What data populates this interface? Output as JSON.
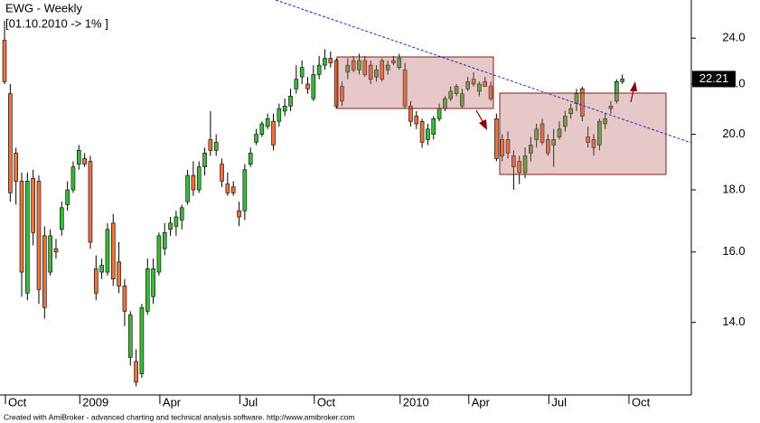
{
  "chart_data": {
    "type": "candlestick",
    "title": "EWG - Weekly",
    "subtitle": "[01.10.2010 -> 1% ]",
    "footer": "Created with AmiBroker - advanced charting and technical analysis software. http://www.amibroker.com",
    "log_scale": true,
    "up_color": "#3cb83c",
    "down_color": "#e8743b",
    "ylim": [
      12.2,
      25.8
    ],
    "yticks": [
      {
        "value": 14,
        "label": "14.0"
      },
      {
        "value": 16,
        "label": "16.0"
      },
      {
        "value": 18,
        "label": "18.0"
      },
      {
        "value": 20,
        "label": "20.0"
      },
      {
        "value": 22,
        "label": "22.0"
      },
      {
        "value": 24,
        "label": "24.0"
      }
    ],
    "categories": [
      "Oct",
      null,
      null,
      null,
      null,
      null,
      null,
      null,
      null,
      null,
      null,
      null,
      null,
      "2009",
      null,
      null,
      null,
      null,
      null,
      null,
      null,
      null,
      null,
      null,
      null,
      null,
      null,
      "Apr",
      null,
      null,
      null,
      null,
      null,
      null,
      null,
      null,
      null,
      null,
      null,
      null,
      null,
      "Jul",
      null,
      null,
      null,
      null,
      null,
      null,
      null,
      null,
      null,
      null,
      null,
      null,
      "Oct",
      null,
      null,
      null,
      null,
      null,
      null,
      null,
      null,
      null,
      null,
      null,
      null,
      null,
      null,
      "2010",
      null,
      null,
      null,
      null,
      null,
      null,
      null,
      null,
      null,
      null,
      null,
      "Apr",
      null,
      null,
      null,
      null,
      null,
      null,
      null,
      null,
      null,
      null,
      null,
      null,
      null,
      "Jul",
      null,
      null,
      null,
      null,
      null,
      null,
      null,
      null,
      null,
      null,
      null,
      null,
      null,
      "Oct"
    ],
    "ohlc": {
      "open": [
        23.9,
        21.6,
        19.3,
        18.3,
        14.8,
        18.4,
        18.3,
        16.5,
        15.4,
        16.1,
        16.7,
        17.5,
        18.0,
        18.9,
        19.1,
        19.0,
        15.5,
        15.4,
        15.4,
        16.9,
        15.7,
        15.0,
        13.1,
        13.0,
        12.7,
        14.3,
        14.7,
        15.4,
        16.1,
        16.7,
        16.8,
        17.0,
        17.6,
        18.5,
        18.0,
        18.8,
        19.8,
        19.4,
        18.9,
        18.2,
        18.1,
        17.3,
        17.3,
        18.9,
        19.7,
        20.0,
        20.3,
        20.5,
        20.5,
        20.9,
        21.1,
        21.8,
        22.3,
        22.0,
        21.4,
        22.4,
        22.8,
        23.1,
        23.0,
        21.9,
        22.5,
        23.0,
        22.6,
        23.0,
        22.8,
        22.3,
        23.0,
        22.6,
        23.0,
        22.7,
        22.6,
        21.1,
        20.7,
        20.5,
        19.8,
        20.0,
        20.6,
        21.0,
        21.4,
        21.6,
        21.1,
        21.8,
        22.2,
        21.7,
        22.1,
        21.9,
        20.6,
        19.8,
        19.8,
        19.2,
        19.0,
        18.6,
        19.3,
        19.8,
        20.4,
        19.8,
        19.6,
        19.9,
        20.3,
        20.8,
        21.2,
        21.8,
        19.9,
        19.8,
        19.6,
        20.4,
        21.0,
        21.3,
        22.1,
        null
      ],
      "high": [
        24.8,
        22.0,
        19.5,
        18.6,
        18.6,
        18.7,
        18.5,
        16.8,
        16.7,
        16.4,
        17.6,
        18.3,
        19.0,
        19.6,
        19.3,
        19.2,
        15.9,
        15.8,
        16.9,
        17.2,
        16.3,
        15.2,
        14.3,
        13.3,
        14.5,
        15.8,
        15.8,
        16.6,
        16.9,
        17.1,
        17.3,
        17.5,
        18.7,
        19.0,
        19.0,
        19.5,
        20.9,
        20.0,
        19.1,
        18.6,
        18.3,
        17.6,
        18.9,
        19.5,
        20.2,
        20.5,
        20.8,
        20.8,
        21.2,
        21.4,
        21.8,
        22.8,
        23.0,
        22.3,
        22.8,
        23.2,
        23.5,
        23.4,
        23.1,
        22.1,
        23.1,
        23.2,
        23.3,
        23.2,
        23.0,
        22.8,
        23.1,
        23.0,
        23.2,
        23.3,
        22.9,
        21.3,
        20.9,
        20.6,
        20.4,
        20.7,
        21.2,
        21.5,
        21.9,
        22.0,
        21.8,
        22.3,
        22.5,
        22.1,
        22.3,
        22.1,
        20.8,
        20.0,
        20.1,
        19.4,
        19.2,
        19.5,
        19.9,
        20.4,
        20.6,
        20.0,
        20.2,
        20.5,
        20.9,
        21.2,
        21.8,
        21.9,
        20.3,
        20.0,
        20.6,
        20.8,
        21.3,
        22.2,
        22.4,
        null
      ],
      "low": [
        22.0,
        17.6,
        17.5,
        14.7,
        14.6,
        16.2,
        14.5,
        14.1,
        15.3,
        15.8,
        16.5,
        17.3,
        17.9,
        18.7,
        18.8,
        16.1,
        14.6,
        15.2,
        15.3,
        15.0,
        14.8,
        13.9,
        12.9,
        12.4,
        12.6,
        14.2,
        14.5,
        15.3,
        15.9,
        16.5,
        16.5,
        16.7,
        17.5,
        17.8,
        17.9,
        18.5,
        19.2,
        19.2,
        18.1,
        17.8,
        17.8,
        16.8,
        17.0,
        18.8,
        19.6,
        19.9,
        20.2,
        19.4,
        20.3,
        20.7,
        20.9,
        21.6,
        22.0,
        21.6,
        21.3,
        22.2,
        22.6,
        22.7,
        21.0,
        21.1,
        22.2,
        22.5,
        22.4,
        22.3,
        22.0,
        22.1,
        22.1,
        22.4,
        22.8,
        22.6,
        21.0,
        20.3,
        20.2,
        19.5,
        19.6,
        19.8,
        20.5,
        20.9,
        21.3,
        21.5,
        21.0,
        21.7,
        21.9,
        21.5,
        21.9,
        21.3,
        19.0,
        19.0,
        19.1,
        18.0,
        18.2,
        18.4,
        19.0,
        19.5,
        19.6,
        19.2,
        18.8,
        19.8,
        20.1,
        20.6,
        20.9,
        20.5,
        19.5,
        19.2,
        19.4,
        20.2,
        20.8,
        21.2,
        22.0,
        null
      ],
      "close": [
        22.1,
        17.9,
        18.3,
        15.4,
        18.3,
        16.6,
        14.9,
        14.4,
        16.5,
        16.0,
        17.4,
        18.0,
        18.8,
        19.4,
        18.9,
        16.3,
        14.8,
        15.6,
        16.7,
        15.2,
        15.0,
        14.3,
        14.2,
        12.5,
        14.4,
        15.5,
        15.5,
        16.5,
        16.6,
        16.9,
        17.1,
        17.4,
        18.5,
        18.0,
        18.8,
        19.3,
        19.4,
        19.7,
        18.3,
        17.9,
        17.9,
        17.1,
        18.7,
        19.3,
        20.0,
        20.4,
        20.6,
        19.6,
        21.0,
        21.1,
        21.5,
        22.2,
        22.7,
        21.8,
        22.4,
        22.8,
        23.1,
        22.9,
        21.1,
        21.3,
        22.8,
        22.6,
        23.0,
        22.4,
        22.2,
        22.6,
        22.2,
        22.8,
        22.9,
        23.1,
        21.1,
        20.5,
        20.4,
        19.7,
        20.2,
        20.6,
        21.0,
        21.4,
        21.7,
        21.9,
        21.6,
        22.1,
        22.0,
        22.0,
        21.9,
        21.4,
        19.1,
        19.2,
        19.3,
        18.8,
        18.6,
        19.2,
        19.6,
        20.2,
        19.7,
        19.3,
        19.8,
        20.2,
        20.7,
        21.0,
        21.6,
        20.7,
        19.7,
        19.5,
        20.5,
        20.6,
        21.1,
        22.1,
        22.21,
        null
      ]
    }
  }
}
